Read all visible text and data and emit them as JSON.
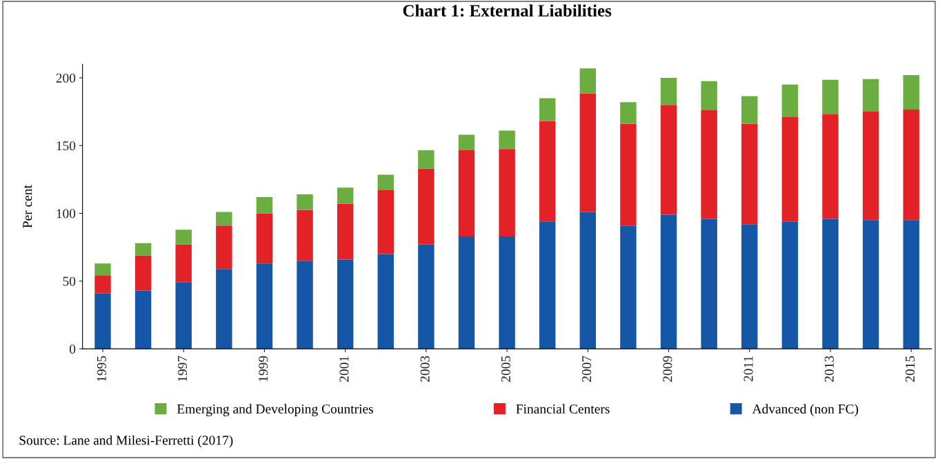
{
  "chart_data": {
    "type": "bar",
    "title": "Chart 1: External Liabilities",
    "ylabel": "Per cent",
    "categories": [
      "1995",
      null,
      "1997",
      null,
      "1999",
      null,
      "2001",
      null,
      "2003",
      null,
      "2005",
      null,
      "2007",
      null,
      "2009",
      null,
      "2011",
      null,
      "2013",
      null,
      "2015"
    ],
    "stacked": true,
    "series": [
      {
        "name": "Advanced (non FC)",
        "color": "#1557a6",
        "values": [
          41,
          43,
          49,
          59,
          63,
          65,
          66,
          70,
          77,
          83,
          83,
          94,
          101,
          91,
          99,
          96,
          92,
          94,
          96,
          95,
          95
        ]
      },
      {
        "name": "Financial Centers",
        "color": "#e32227",
        "values": [
          13,
          26,
          28,
          32,
          37,
          37.5,
          41,
          47,
          56,
          63.5,
          64.5,
          74,
          87.5,
          75,
          81,
          80,
          74,
          77,
          77,
          80,
          81.5
        ]
      },
      {
        "name": "Emerging and Developing Countries",
        "color": "#6cad42",
        "values": [
          9,
          9,
          11,
          10,
          12,
          11.5,
          12,
          11.5,
          13.5,
          11.5,
          13.5,
          17,
          18.5,
          16,
          20,
          21.5,
          20.5,
          24,
          25.5,
          24,
          25.5
        ]
      }
    ],
    "ylim": [
      0,
      210
    ],
    "yticks": [
      0,
      50,
      100,
      150,
      200
    ],
    "grid": false,
    "legend": "bottom",
    "annotations": [
      "Source: Lane and Milesi-Ferretti (2017)"
    ]
  }
}
